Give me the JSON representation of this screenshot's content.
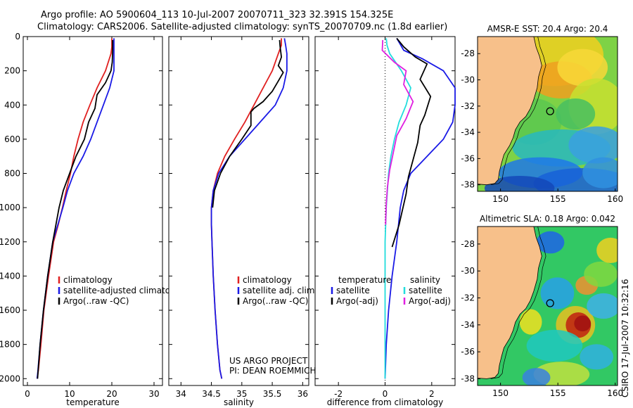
{
  "header": {
    "line1": "Argo profile: AO 5900604_113 10-Jul-2007 20070711_323 32.391S 154.325E",
    "line2": "Climatology: CARS2006. Satellite-adjusted climatology: synTS_20070709.nc (1.8d earlier)"
  },
  "colors": {
    "climatology": "#e02020",
    "satellite": "#1a1ae6",
    "argo": "#000000",
    "sat_temp": "#22dddd",
    "argo_sal": "#e020e0",
    "land": "#f7c08a"
  },
  "chart_data": [
    {
      "type": "line",
      "id": "temperature",
      "xlabel": "temperature",
      "xlim": [
        -1,
        32
      ],
      "ylim": [
        2040,
        0
      ],
      "xticks": [
        0,
        10,
        20,
        30
      ],
      "yticks": [
        0,
        200,
        400,
        600,
        800,
        1000,
        1200,
        1400,
        1600,
        1800,
        2000
      ],
      "series": [
        {
          "name": "climatology",
          "color": "#e02020",
          "x": [
            20,
            20,
            19.8,
            18.5,
            16.5,
            14.8,
            13.2,
            12,
            11,
            10.2,
            9.2,
            8.3,
            7.3,
            6.2,
            5,
            3.9,
            3.2,
            2.6,
            2.3
          ],
          "y": [
            10,
            60,
            100,
            200,
            300,
            400,
            500,
            600,
            700,
            800,
            900,
            1000,
            1100,
            1200,
            1400,
            1600,
            1800,
            1950,
            2000
          ]
        },
        {
          "name": "satellite-adjusted climatology",
          "color": "#1a1ae6",
          "x": [
            20.5,
            20.5,
            20.5,
            20.5,
            19.5,
            18,
            16.5,
            15,
            13.2,
            11,
            9.5,
            8.4,
            7.2,
            6,
            4.8,
            3.8,
            3,
            2.5,
            2.3
          ],
          "y": [
            10,
            60,
            100,
            200,
            300,
            400,
            500,
            600,
            700,
            800,
            900,
            1000,
            1100,
            1200,
            1400,
            1600,
            1800,
            1950,
            2000
          ]
        },
        {
          "name": "Argo(..raw -QC)",
          "color": "#000000",
          "x": [
            20.2,
            20.2,
            20.1,
            19.8,
            18.5,
            16.5,
            16,
            14.5,
            13.5,
            11.5,
            10,
            8.5,
            7.5,
            6,
            4.8,
            3.8,
            3,
            2.4
          ],
          "y": [
            20,
            80,
            150,
            200,
            270,
            340,
            420,
            500,
            600,
            700,
            800,
            900,
            1000,
            1200,
            1400,
            1600,
            1800,
            2000
          ]
        }
      ],
      "legend": [
        "climatology",
        "satellite-adjusted climatology",
        "Argo(..raw -QC)"
      ]
    },
    {
      "type": "line",
      "id": "salinity",
      "xlabel": "salinity",
      "xlim": [
        33.8,
        36.1
      ],
      "ylim": [
        2040,
        0
      ],
      "xticks": [
        34,
        34.5,
        35,
        35.5,
        36
      ],
      "series": [
        {
          "name": "climatology",
          "color": "#e02020",
          "x": [
            35.65,
            35.65,
            35.6,
            35.5,
            35.35,
            35.2,
            35.05,
            34.88,
            34.72,
            34.6,
            34.53,
            34.5,
            34.5,
            34.51,
            34.53,
            34.56,
            34.6,
            34.64,
            34.67
          ],
          "y": [
            10,
            50,
            100,
            200,
            300,
            400,
            500,
            600,
            700,
            800,
            900,
            1000,
            1100,
            1200,
            1400,
            1600,
            1800,
            1950,
            2000
          ]
        },
        {
          "name": "satellite adj. clim.",
          "color": "#1a1ae6",
          "x": [
            35.7,
            35.72,
            35.74,
            35.74,
            35.68,
            35.55,
            35.3,
            35.05,
            34.8,
            34.62,
            34.53,
            34.5,
            34.5,
            34.51,
            34.53,
            34.56,
            34.6,
            34.64,
            34.67
          ],
          "y": [
            10,
            50,
            100,
            200,
            300,
            400,
            500,
            600,
            700,
            800,
            900,
            1000,
            1100,
            1200,
            1400,
            1600,
            1800,
            1950,
            2000
          ]
        },
        {
          "name": "Argo(..raw -QC)",
          "color": "#000000",
          "x": [
            35.62,
            35.63,
            35.65,
            35.6,
            35.68,
            35.6,
            35.5,
            35.35,
            35.2,
            35.15,
            35.15,
            35,
            34.8,
            34.65,
            34.55,
            34.52
          ],
          "y": [
            20,
            60,
            120,
            170,
            210,
            260,
            320,
            380,
            420,
            440,
            520,
            600,
            700,
            800,
            900,
            1000
          ]
        }
      ],
      "legend": [
        "climatology",
        "satellite adj. clim.",
        "Argo(..raw -QC)"
      ],
      "annotations": [
        "US ARGO PROJECT",
        "PI: DEAN ROEMMICH"
      ]
    },
    {
      "type": "line",
      "id": "difference",
      "xlabel": "difference from climatology",
      "xlim": [
        -3,
        3
      ],
      "ylim": [
        2040,
        0
      ],
      "xticks": [
        -2,
        0,
        2
      ],
      "series": [
        {
          "name": "satellite temperature",
          "color": "#1a1ae6",
          "x": [
            0.5,
            0.8,
            1.6,
            2.5,
            3.1,
            3.2,
            2.9,
            2.5,
            1.8,
            1.1,
            0.8,
            0.65,
            0.5,
            0.3,
            0.15,
            0.05,
            0
          ],
          "y": [
            10,
            80,
            130,
            200,
            300,
            400,
            500,
            600,
            700,
            800,
            900,
            1000,
            1200,
            1400,
            1600,
            1800,
            2000
          ]
        },
        {
          "name": "Argo temperature (-adj)",
          "color": "#000000",
          "x": [
            0.5,
            0.8,
            1.3,
            1.8,
            1.5,
            1.95,
            1.7,
            1.5,
            1.4,
            1.2,
            1.0,
            0.9,
            0.6,
            0.3
          ],
          "y": [
            10,
            60,
            120,
            160,
            250,
            350,
            460,
            520,
            620,
            720,
            820,
            920,
            1100,
            1230
          ]
        },
        {
          "name": "satellite salinity",
          "color": "#22dddd",
          "x": [
            0.05,
            0.08,
            0.2,
            0.7,
            1.1,
            0.9,
            0.6,
            0.4,
            0.25,
            0.15,
            0.1,
            0.05,
            0,
            0,
            0
          ],
          "y": [
            10,
            50,
            100,
            200,
            300,
            400,
            500,
            600,
            700,
            800,
            900,
            1000,
            1200,
            1600,
            2000
          ]
        },
        {
          "name": "Argo salinity (-adj)",
          "color": "#e020e0",
          "x": [
            -0.1,
            -0.12,
            0.4,
            0.9,
            0.8,
            1.2,
            0.9,
            0.5,
            0.35,
            0.2,
            0.1,
            0.05,
            0.02
          ],
          "y": [
            20,
            80,
            150,
            200,
            280,
            380,
            480,
            580,
            680,
            780,
            880,
            980,
            1100
          ]
        }
      ],
      "legend": {
        "temperature_label": "temperature",
        "salinity_label": "salinity",
        "satellite": "satellite",
        "argo": "Argo(-adj)"
      }
    },
    {
      "type": "heatmap",
      "id": "sst_map",
      "title": "AMSR-E SST: 20.4 Argo: 20.4",
      "xticks": [
        150,
        155,
        160
      ],
      "yticks": [
        -28,
        -30,
        -32,
        -34,
        -36,
        -38
      ],
      "xlim": [
        148,
        160.2
      ],
      "ylim": [
        -38.5,
        -26.7
      ],
      "marker": {
        "lon": 154.325,
        "lat": -32.391
      }
    },
    {
      "type": "heatmap",
      "id": "sla_map",
      "title": "Altimetric SLA: 0.18 Argo: 0.042",
      "xticks": [
        150,
        155,
        160
      ],
      "yticks": [
        -28,
        -30,
        -32,
        -34,
        -36,
        -38
      ],
      "xlim": [
        148,
        160.2
      ],
      "ylim": [
        -38.5,
        -26.7
      ],
      "marker": {
        "lon": 154.325,
        "lat": -32.391
      }
    }
  ],
  "credit": "CSIRO 17-Jul-2007 10:32:16"
}
